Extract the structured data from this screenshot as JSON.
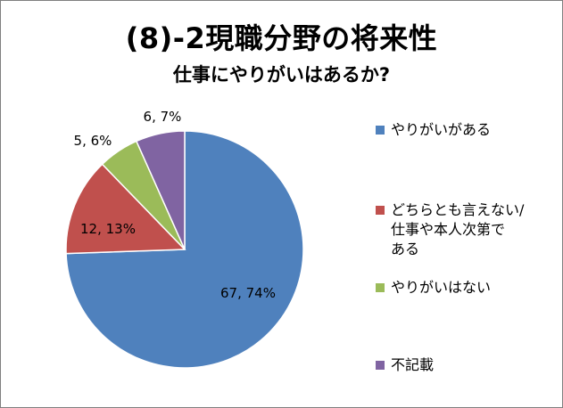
{
  "chart_data": {
    "type": "pie",
    "title": "(8)-2現職分野の将来性",
    "subtitle": "仕事にやりがいはあるか?",
    "legend_position": "right",
    "slices": [
      {
        "name": "やりがいがある",
        "value": 67,
        "percent": 74,
        "label": "67, 74%",
        "color": "#4f81bd"
      },
      {
        "name": "どちらとも言えない/\n仕事や本人次第で\nある",
        "value": 12,
        "percent": 13,
        "label": "12, 13%",
        "color": "#c0504d"
      },
      {
        "name": "やりがいはない",
        "value": 5,
        "percent": 6,
        "label": "5, 6%",
        "color": "#9bbb59"
      },
      {
        "name": "不記載",
        "value": 6,
        "percent": 7,
        "label": "6, 7%",
        "color": "#8064a2"
      }
    ]
  }
}
